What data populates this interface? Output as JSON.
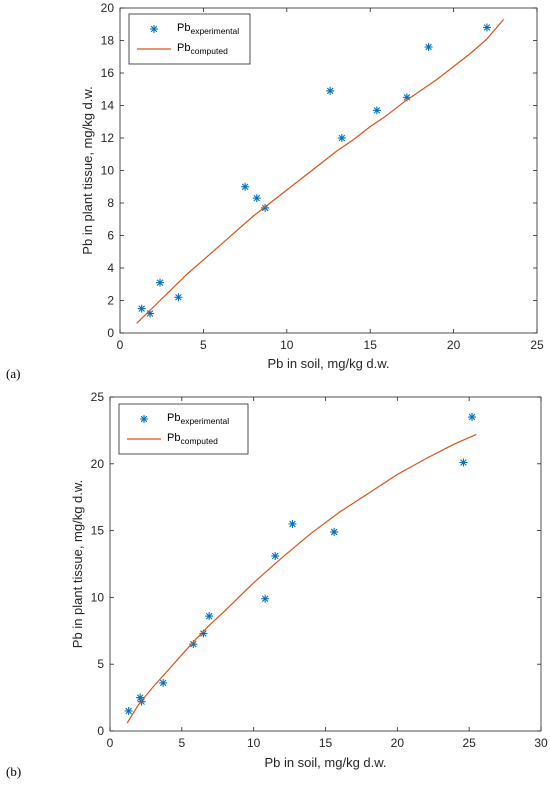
{
  "colors": {
    "experimental": "#0072BD",
    "computed": "#D95319",
    "axis": "#262626"
  },
  "chart_data": [
    {
      "type": "scatter",
      "panel_label": "(a)",
      "xlabel": "Pb in soil, mg/kg d.w.",
      "ylabel": "Pb in plant tissue, mg/kg d.w.",
      "xlim": [
        0,
        25
      ],
      "ylim": [
        0,
        20
      ],
      "xticks": [
        0,
        5,
        10,
        15,
        20,
        25
      ],
      "yticks": [
        0,
        2,
        4,
        6,
        8,
        10,
        12,
        14,
        16,
        18,
        20
      ],
      "legend_position": "top-left",
      "grid": false,
      "series": [
        {
          "name_base": "Pb",
          "name_sub": "experimental",
          "kind": "scatter",
          "marker": "asterisk",
          "x": [
            1.3,
            1.8,
            2.4,
            3.5,
            7.5,
            8.2,
            8.7,
            12.6,
            13.3,
            15.4,
            17.2,
            18.5,
            22.0
          ],
          "y": [
            1.5,
            1.2,
            3.1,
            2.2,
            9.0,
            8.3,
            7.7,
            14.9,
            12.0,
            13.7,
            14.5,
            17.6,
            18.8
          ]
        },
        {
          "name_base": "Pb",
          "name_sub": "computed",
          "kind": "line",
          "x": [
            1.0,
            2.0,
            3.0,
            4.0,
            5.0,
            6.0,
            7.0,
            8.0,
            9.0,
            10.0,
            11.0,
            12.0,
            13.0,
            14.0,
            15.0,
            16.0,
            17.0,
            18.0,
            19.0,
            20.0,
            21.0,
            22.0,
            23.0
          ],
          "y": [
            0.6,
            1.6,
            2.6,
            3.6,
            4.5,
            5.4,
            6.3,
            7.2,
            8.0,
            8.8,
            9.6,
            10.4,
            11.2,
            11.9,
            12.7,
            13.4,
            14.2,
            14.9,
            15.6,
            16.4,
            17.2,
            18.1,
            19.3
          ]
        }
      ]
    },
    {
      "type": "scatter",
      "panel_label": "(b)",
      "xlabel": "Pb in soil, mg/kg d.w.",
      "ylabel": "Pb in plant tissue, mg/kg d.w.",
      "xlim": [
        0,
        30
      ],
      "ylim": [
        0,
        25
      ],
      "xticks": [
        0,
        5,
        10,
        15,
        20,
        25,
        30
      ],
      "yticks": [
        0,
        5,
        10,
        15,
        20,
        25
      ],
      "legend_position": "top-left",
      "grid": false,
      "series": [
        {
          "name_base": "Pb",
          "name_sub": "experimental",
          "kind": "scatter",
          "marker": "asterisk",
          "x": [
            1.3,
            2.1,
            2.2,
            3.7,
            5.8,
            6.5,
            6.9,
            10.8,
            11.5,
            12.7,
            15.6,
            24.6,
            25.2
          ],
          "y": [
            1.5,
            2.5,
            2.2,
            3.6,
            6.5,
            7.3,
            8.6,
            9.9,
            13.1,
            15.5,
            14.9,
            20.1,
            23.5
          ]
        },
        {
          "name_base": "Pb",
          "name_sub": "computed",
          "kind": "line",
          "x": [
            1.2,
            2.0,
            3.0,
            4.0,
            5.0,
            6.0,
            7.0,
            8.0,
            10.0,
            12.0,
            14.0,
            16.0,
            18.0,
            20.0,
            22.0,
            24.0,
            25.5
          ],
          "y": [
            0.6,
            2.0,
            3.3,
            4.5,
            5.7,
            6.9,
            8.0,
            9.0,
            11.1,
            13.0,
            14.8,
            16.4,
            17.8,
            19.2,
            20.4,
            21.5,
            22.2
          ]
        }
      ]
    }
  ]
}
